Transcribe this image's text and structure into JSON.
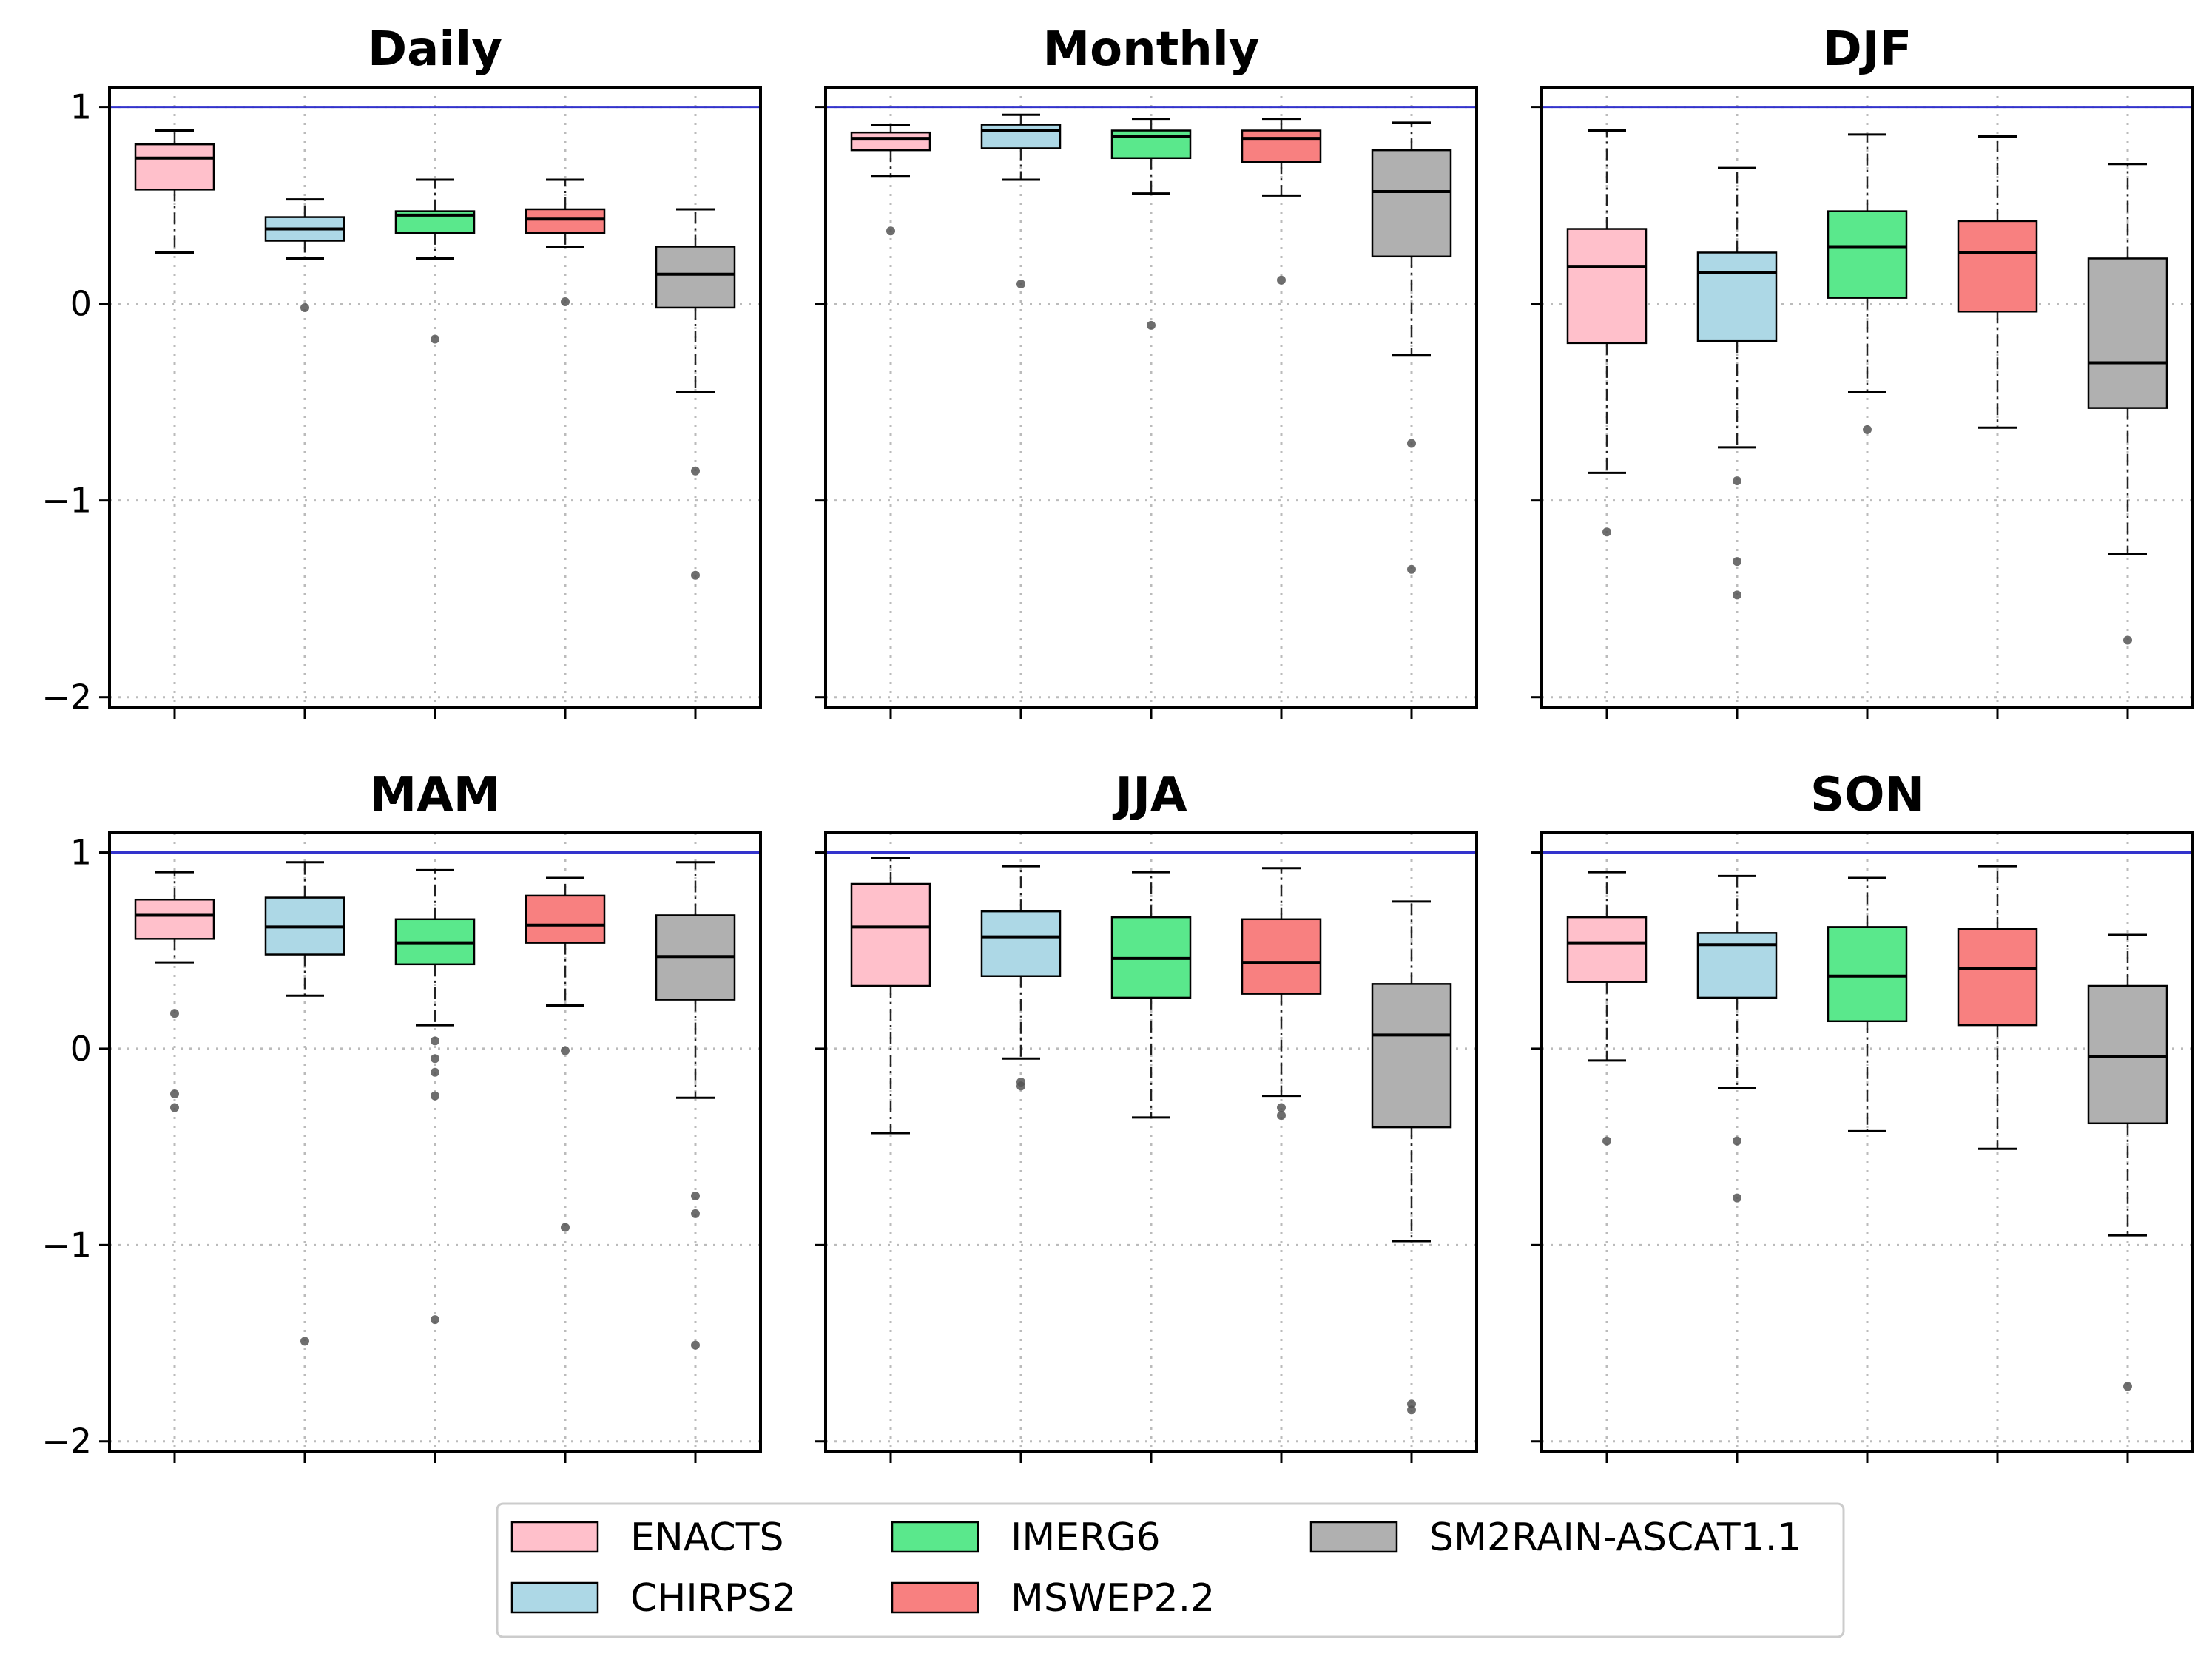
{
  "colors": {
    "ENACTS": "#ffc0cb",
    "CHIRPS2": "#add8e6",
    "IMERG6": "#5ae88c",
    "MSWEP2.2": "#f88080",
    "SM2RAIN-ASCAT1.1": "#b0b0b0",
    "reference_line": "#3333cc"
  },
  "legend": {
    "items": [
      "ENACTS",
      "CHIRPS2",
      "IMERG6",
      "MSWEP2.2",
      "SM2RAIN-ASCAT1.1"
    ]
  },
  "chart_data": [
    {
      "type": "box",
      "title": "Daily",
      "ylim": [
        -2.05,
        1.1
      ],
      "yticks": [
        "1",
        "0",
        "−1",
        "−2"
      ],
      "reference_line": 1.0,
      "grid": true,
      "series": [
        {
          "name": "ENACTS",
          "whislo": 0.26,
          "q1": 0.58,
          "med": 0.74,
          "q3": 0.81,
          "whishi": 0.88,
          "fliers": []
        },
        {
          "name": "CHIRPS2",
          "whislo": 0.23,
          "q1": 0.32,
          "med": 0.38,
          "q3": 0.44,
          "whishi": 0.53,
          "fliers": [
            -0.02
          ]
        },
        {
          "name": "IMERG6",
          "whislo": 0.23,
          "q1": 0.36,
          "med": 0.45,
          "q3": 0.47,
          "whishi": 0.63,
          "fliers": [
            -0.18
          ]
        },
        {
          "name": "MSWEP2.2",
          "whislo": 0.29,
          "q1": 0.36,
          "med": 0.43,
          "q3": 0.48,
          "whishi": 0.63,
          "fliers": [
            0.01
          ]
        },
        {
          "name": "SM2RAIN-ASCAT1.1",
          "whislo": -0.45,
          "q1": -0.02,
          "med": 0.15,
          "q3": 0.29,
          "whishi": 0.48,
          "fliers": [
            -0.85,
            -1.38
          ]
        }
      ]
    },
    {
      "type": "box",
      "title": "Monthly",
      "ylim": [
        -2.05,
        1.1
      ],
      "yticks": [
        "1",
        "0",
        "−1",
        "−2"
      ],
      "reference_line": 1.0,
      "grid": true,
      "series": [
        {
          "name": "ENACTS",
          "whislo": 0.65,
          "q1": 0.78,
          "med": 0.84,
          "q3": 0.87,
          "whishi": 0.91,
          "fliers": [
            0.37
          ]
        },
        {
          "name": "CHIRPS2",
          "whislo": 0.63,
          "q1": 0.79,
          "med": 0.88,
          "q3": 0.91,
          "whishi": 0.96,
          "fliers": [
            0.1
          ]
        },
        {
          "name": "IMERG6",
          "whislo": 0.56,
          "q1": 0.74,
          "med": 0.85,
          "q3": 0.88,
          "whishi": 0.94,
          "fliers": [
            -0.11
          ]
        },
        {
          "name": "MSWEP2.2",
          "whislo": 0.55,
          "q1": 0.72,
          "med": 0.84,
          "q3": 0.88,
          "whishi": 0.94,
          "fliers": [
            0.12
          ]
        },
        {
          "name": "SM2RAIN-ASCAT1.1",
          "whislo": -0.26,
          "q1": 0.24,
          "med": 0.57,
          "q3": 0.78,
          "whishi": 0.92,
          "fliers": [
            -0.71,
            -1.35
          ]
        }
      ]
    },
    {
      "type": "box",
      "title": "DJF",
      "ylim": [
        -2.05,
        1.1
      ],
      "yticks": [
        "1",
        "0",
        "−1",
        "−2"
      ],
      "reference_line": 1.0,
      "grid": true,
      "series": [
        {
          "name": "ENACTS",
          "whislo": -0.86,
          "q1": -0.2,
          "med": 0.19,
          "q3": 0.38,
          "whishi": 0.88,
          "fliers": [
            -1.16
          ]
        },
        {
          "name": "CHIRPS2",
          "whislo": -0.73,
          "q1": -0.19,
          "med": 0.16,
          "q3": 0.26,
          "whishi": 0.69,
          "fliers": [
            -0.9,
            -1.31,
            -1.48
          ]
        },
        {
          "name": "IMERG6",
          "whislo": -0.45,
          "q1": 0.03,
          "med": 0.29,
          "q3": 0.47,
          "whishi": 0.86,
          "fliers": [
            -0.64
          ]
        },
        {
          "name": "MSWEP2.2",
          "whislo": -0.63,
          "q1": -0.04,
          "med": 0.26,
          "q3": 0.42,
          "whishi": 0.85,
          "fliers": []
        },
        {
          "name": "SM2RAIN-ASCAT1.1",
          "whislo": -1.27,
          "q1": -0.53,
          "med": -0.3,
          "q3": 0.23,
          "whishi": 0.71,
          "fliers": [
            -1.71
          ]
        }
      ]
    },
    {
      "type": "box",
      "title": "MAM",
      "ylim": [
        -2.05,
        1.1
      ],
      "yticks": [
        "1",
        "0",
        "−1",
        "−2"
      ],
      "reference_line": 1.0,
      "grid": true,
      "series": [
        {
          "name": "ENACTS",
          "whislo": 0.44,
          "q1": 0.56,
          "med": 0.68,
          "q3": 0.76,
          "whishi": 0.9,
          "fliers": [
            0.18,
            -0.23,
            -0.3
          ]
        },
        {
          "name": "CHIRPS2",
          "whislo": 0.27,
          "q1": 0.48,
          "med": 0.62,
          "q3": 0.77,
          "whishi": 0.95,
          "fliers": [
            -1.49
          ]
        },
        {
          "name": "IMERG6",
          "whislo": 0.12,
          "q1": 0.43,
          "med": 0.54,
          "q3": 0.66,
          "whishi": 0.91,
          "fliers": [
            0.04,
            -0.05,
            -0.12,
            -0.24,
            -1.38
          ]
        },
        {
          "name": "MSWEP2.2",
          "whislo": 0.22,
          "q1": 0.54,
          "med": 0.63,
          "q3": 0.78,
          "whishi": 0.87,
          "fliers": [
            -0.01,
            -0.91
          ]
        },
        {
          "name": "SM2RAIN-ASCAT1.1",
          "whislo": -0.25,
          "q1": 0.25,
          "med": 0.47,
          "q3": 0.68,
          "whishi": 0.95,
          "fliers": [
            -0.75,
            -0.84,
            -1.51
          ]
        }
      ]
    },
    {
      "type": "box",
      "title": "JJA",
      "ylim": [
        -2.05,
        1.1
      ],
      "yticks": [
        "1",
        "0",
        "−1",
        "−2"
      ],
      "reference_line": 1.0,
      "grid": true,
      "series": [
        {
          "name": "ENACTS",
          "whislo": -0.43,
          "q1": 0.32,
          "med": 0.62,
          "q3": 0.84,
          "whishi": 0.97,
          "fliers": []
        },
        {
          "name": "CHIRPS2",
          "whislo": -0.05,
          "q1": 0.37,
          "med": 0.57,
          "q3": 0.7,
          "whishi": 0.93,
          "fliers": [
            -0.17,
            -0.19
          ]
        },
        {
          "name": "IMERG6",
          "whislo": -0.35,
          "q1": 0.26,
          "med": 0.46,
          "q3": 0.67,
          "whishi": 0.9,
          "fliers": []
        },
        {
          "name": "MSWEP2.2",
          "whislo": -0.24,
          "q1": 0.28,
          "med": 0.44,
          "q3": 0.66,
          "whishi": 0.92,
          "fliers": [
            -0.3,
            -0.34
          ]
        },
        {
          "name": "SM2RAIN-ASCAT1.1",
          "whislo": -0.98,
          "q1": -0.4,
          "med": 0.07,
          "q3": 0.33,
          "whishi": 0.75,
          "fliers": [
            -1.81,
            -1.84
          ]
        }
      ]
    },
    {
      "type": "box",
      "title": "SON",
      "ylim": [
        -2.05,
        1.1
      ],
      "yticks": [
        "1",
        "0",
        "−1",
        "−2"
      ],
      "reference_line": 1.0,
      "grid": true,
      "series": [
        {
          "name": "ENACTS",
          "whislo": -0.06,
          "q1": 0.34,
          "med": 0.54,
          "q3": 0.67,
          "whishi": 0.9,
          "fliers": [
            -0.47
          ]
        },
        {
          "name": "CHIRPS2",
          "whislo": -0.2,
          "q1": 0.26,
          "med": 0.53,
          "q3": 0.59,
          "whishi": 0.88,
          "fliers": [
            -0.47,
            -0.76
          ]
        },
        {
          "name": "IMERG6",
          "whislo": -0.42,
          "q1": 0.14,
          "med": 0.37,
          "q3": 0.62,
          "whishi": 0.87,
          "fliers": []
        },
        {
          "name": "MSWEP2.2",
          "whislo": -0.51,
          "q1": 0.12,
          "med": 0.41,
          "q3": 0.61,
          "whishi": 0.93,
          "fliers": []
        },
        {
          "name": "SM2RAIN-ASCAT1.1",
          "whislo": -0.95,
          "q1": -0.38,
          "med": -0.04,
          "q3": 0.32,
          "whishi": 0.58,
          "fliers": [
            -1.72
          ]
        }
      ]
    }
  ]
}
